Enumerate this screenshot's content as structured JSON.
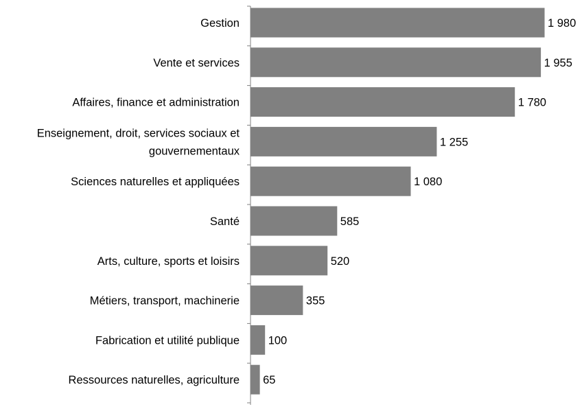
{
  "chart_data": {
    "type": "bar",
    "orientation": "horizontal",
    "title": "",
    "xlabel": "",
    "ylabel": "",
    "categories": [
      [
        "Gestion"
      ],
      [
        "Vente et services"
      ],
      [
        "Affaires, finance et administration"
      ],
      [
        "Enseignement, droit, services sociaux et",
        "gouvernementaux"
      ],
      [
        "Sciences naturelles et appliquées"
      ],
      [
        "Santé"
      ],
      [
        "Arts, culture, sports et loisirs"
      ],
      [
        "Métiers, transport, machinerie"
      ],
      [
        "Fabrication et utilité publique"
      ],
      [
        "Ressources naturelles, agriculture"
      ]
    ],
    "values": [
      1980,
      1955,
      1780,
      1255,
      1080,
      585,
      520,
      355,
      100,
      65
    ],
    "value_labels": [
      "1 980",
      "1 955",
      "1 780",
      "1 255",
      "1 080",
      "585",
      "520",
      "355",
      "100",
      "65"
    ],
    "xlim": [
      0,
      2000
    ],
    "grid": false,
    "legend": "none",
    "colors": {
      "bar": "#808080",
      "bar_stroke": "#ffffff",
      "axis": "#808080",
      "text": "#000000"
    }
  }
}
